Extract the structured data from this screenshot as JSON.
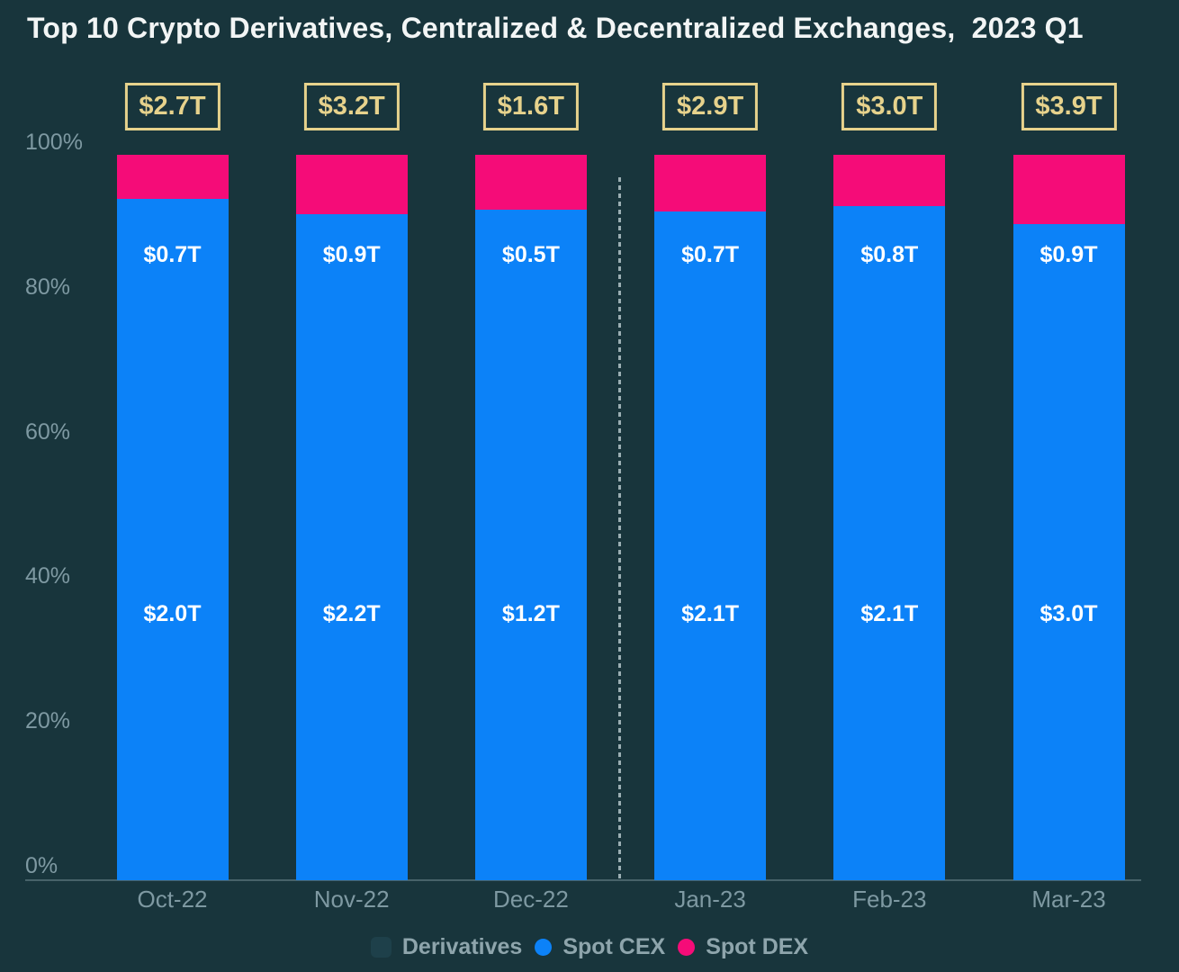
{
  "title": "Top 10 Crypto Derivatives, Centralized & Decentralized Exchanges,  2023 Q1",
  "colors": {
    "background": "#18353C",
    "title_text": "#F2F5F5",
    "gold": "#E6D28C",
    "spot_cex_blue": "#0C82F8",
    "spot_dex_pink": "#F50C78",
    "bar_value_text": "#FFFFFF",
    "axis_text": "#7E99A2",
    "legend_text": "#8EA5AC",
    "derivatives_swatch": "#1E404A",
    "axis_line": "rgba(160,182,188,0.35)",
    "divider_line": "rgba(178,196,200,0.85)"
  },
  "legend": {
    "items": [
      {
        "label": "Derivatives",
        "marker": "derivatives-swatch",
        "color_key": "derivatives_swatch"
      },
      {
        "label": "Spot CEX",
        "marker": "blue-dot",
        "color_key": "spot_cex_blue"
      },
      {
        "label": "Spot DEX",
        "marker": "pink-dot",
        "color_key": "spot_dex_pink"
      }
    ]
  },
  "chart_data": {
    "type": "bar",
    "stacked": true,
    "title": "Top 10 Crypto Derivatives, Centralized & Decentralized Exchanges,  2023 Q1",
    "categories": [
      "Oct-22",
      "Nov-22",
      "Dec-22",
      "Jan-23",
      "Feb-23",
      "Mar-23"
    ],
    "series": [
      {
        "name": "Derivatives",
        "values_trillions_usd": [
          2.7,
          3.2,
          1.6,
          2.9,
          3.0,
          3.9
        ],
        "labels": [
          "$2.7T",
          "$3.2T",
          "$1.6T",
          "$2.9T",
          "$3.0T",
          "$3.9T"
        ]
      },
      {
        "name": "Spot CEX",
        "values_trillions_usd": [
          2.0,
          2.2,
          1.2,
          2.1,
          2.1,
          3.0
        ],
        "labels": [
          "$2.0T",
          "$2.2T",
          "$1.2T",
          "$2.1T",
          "$2.1T",
          "$3.0T"
        ]
      },
      {
        "name": "Spot DEX",
        "values_trillions_usd": [
          0.7,
          0.9,
          0.5,
          0.7,
          0.8,
          0.9
        ],
        "labels": [
          "$0.7T",
          "$0.9T",
          "$0.5T",
          "$0.7T",
          "$0.8T",
          "$0.9T"
        ]
      }
    ],
    "xlabel": "",
    "ylabel": "",
    "ylim": [
      0,
      100
    ],
    "yticks": [
      "100%",
      "80%",
      "60%",
      "40%",
      "20%",
      "0%"
    ],
    "grid": false,
    "legend_position": "bottom-center",
    "display_hints": {
      "bar_total_pct": 98.3,
      "dex_segment_pct": [
        6.0,
        8.1,
        7.4,
        7.7,
        7.0,
        9.4
      ],
      "divider_after_category": "Dec-22"
    }
  }
}
